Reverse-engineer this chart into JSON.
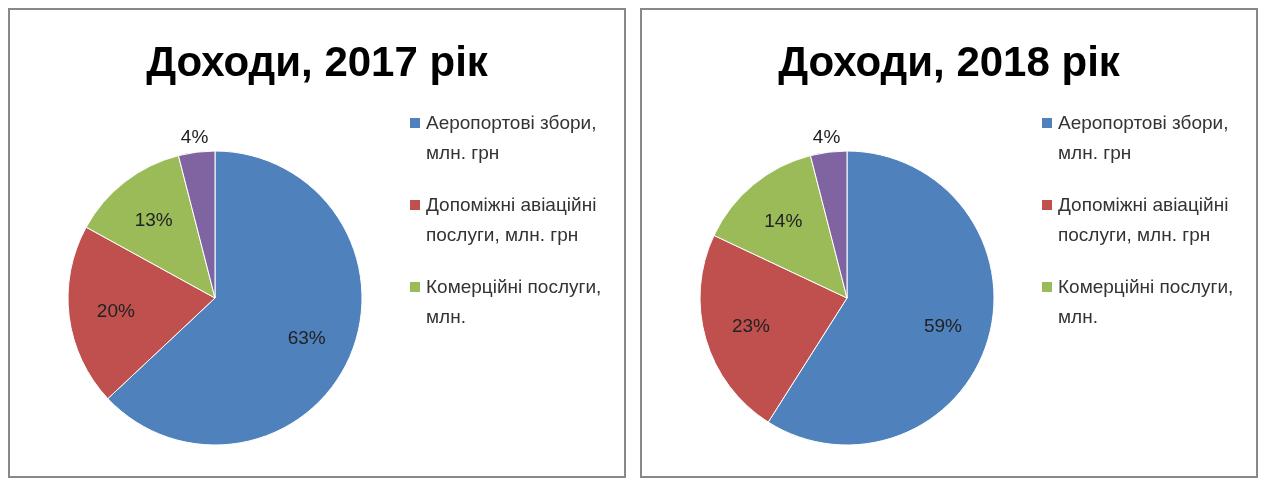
{
  "chart_data": [
    {
      "type": "pie",
      "title": "Доходи, 2017 рік",
      "categories": [
        "Аеропортові збори, млн. грн",
        "Допоміжні авіаційні послуги, млн. грн",
        "Комерційні послуги, млн.",
        null
      ],
      "values": [
        63,
        20,
        13,
        4
      ],
      "colors": [
        "#4f81bd",
        "#c0504d",
        "#9bbb59",
        "#8064a2"
      ],
      "value_labels": [
        "63%",
        "20%",
        "13%",
        "4%"
      ],
      "legend": "right"
    },
    {
      "type": "pie",
      "title": "Доходи, 2018 рік",
      "categories": [
        "Аеропортові збори, млн. грн",
        "Допоміжні авіаційні послуги, млн. грн",
        "Комерційні послуги, млн.",
        null
      ],
      "values": [
        59,
        23,
        14,
        4
      ],
      "colors": [
        "#4f81bd",
        "#c0504d",
        "#9bbb59",
        "#8064a2"
      ],
      "value_labels": [
        "59%",
        "23%",
        "14%",
        "4%"
      ],
      "legend": "right"
    }
  ]
}
